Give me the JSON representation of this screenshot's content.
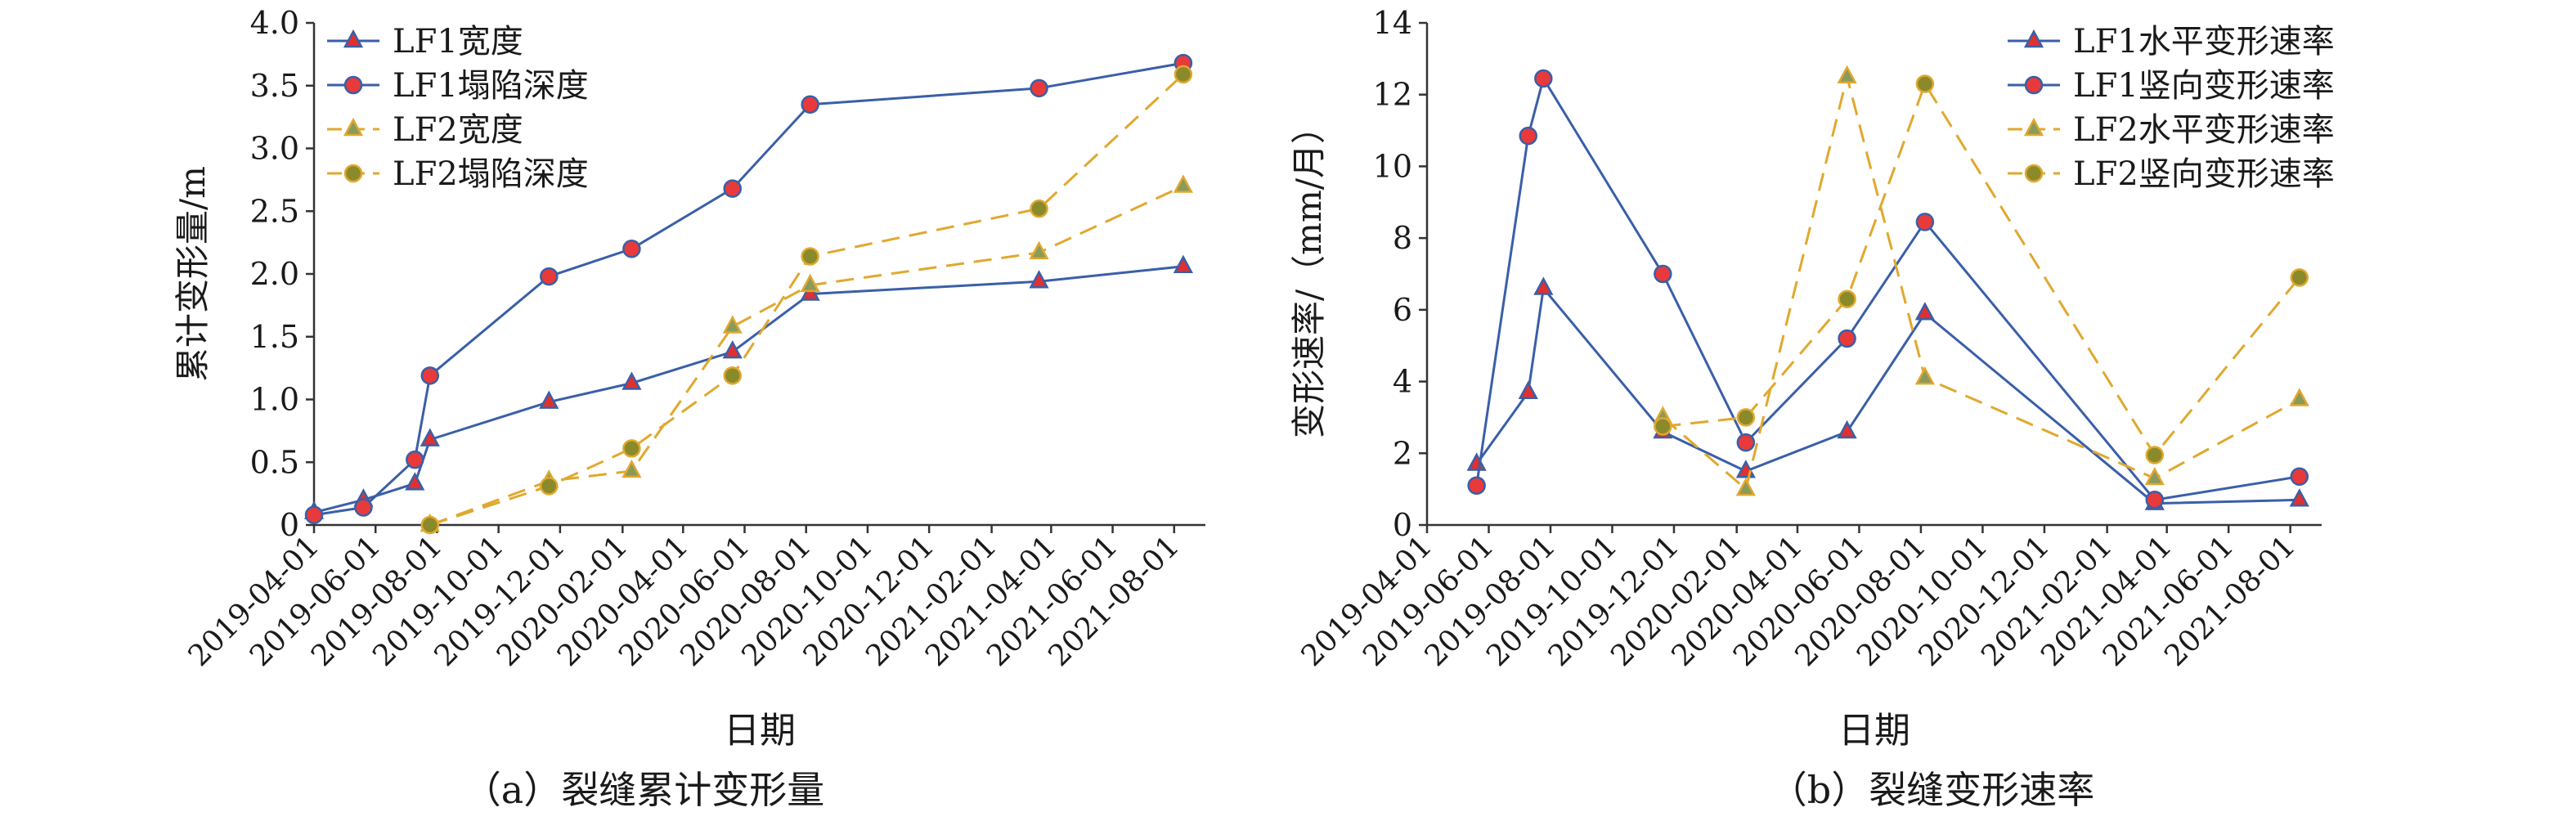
{
  "colors": {
    "lf1": "#3a5fa8",
    "lf2": "#e0a82e",
    "marker_lf1_width": "#e03030",
    "marker_lf1_depth": "#e83a3a",
    "marker_lf2_width": "#8a9a5b",
    "marker_lf2_depth": "#8a8a2a",
    "axis": "#333333"
  },
  "captions": {
    "a": "（a）裂缝累计变形量",
    "b": "（b）裂缝变形速率"
  },
  "chart_data": [
    {
      "type": "line",
      "xlabel": "日期",
      "ylabel": "累计变形量/m",
      "ylim": [
        0,
        4.0
      ],
      "yticks": [
        "0",
        "0.5",
        "1.0",
        "1.5",
        "2.0",
        "2.5",
        "3.0",
        "3.5",
        "4.0"
      ],
      "xlim": [
        "2019-04-01",
        "2021-09-01"
      ],
      "xticks": [
        "2019-04-01",
        "2019-06-01",
        "2019-08-01",
        "2019-10-01",
        "2019-12-01",
        "2020-02-01",
        "2020-04-01",
        "2020-06-01",
        "2020-08-01",
        "2020-10-01",
        "2020-12-01",
        "2021-02-01",
        "2021-04-01",
        "2021-06-01",
        "2021-08-01"
      ],
      "legend": "top-left",
      "series": [
        {
          "name": "LF1宽度",
          "style": "solid",
          "marker": "triangle",
          "x": [
            "2019-04-01",
            "2019-05-20",
            "2019-07-10",
            "2019-07-25",
            "2019-11-20",
            "2020-02-10",
            "2020-05-20",
            "2020-08-05",
            "2021-03-20",
            "2021-08-10"
          ],
          "values": [
            0.1,
            0.2,
            0.33,
            0.68,
            0.98,
            1.13,
            1.38,
            1.84,
            1.94,
            2.06
          ]
        },
        {
          "name": "LF1塌陷深度",
          "style": "solid",
          "marker": "circle",
          "x": [
            "2019-04-01",
            "2019-05-20",
            "2019-07-10",
            "2019-07-25",
            "2019-11-20",
            "2020-02-10",
            "2020-05-20",
            "2020-08-05",
            "2021-03-20",
            "2021-08-10"
          ],
          "values": [
            0.08,
            0.14,
            0.52,
            1.19,
            1.98,
            2.2,
            2.68,
            3.35,
            3.48,
            3.68
          ]
        },
        {
          "name": "LF2宽度",
          "style": "dashed",
          "marker": "triangle",
          "x": [
            "2019-07-25",
            "2019-11-20",
            "2020-02-10",
            "2020-05-20",
            "2020-08-05",
            "2021-03-20",
            "2021-08-10"
          ],
          "values": [
            0.0,
            0.35,
            0.43,
            1.58,
            1.91,
            2.17,
            2.7
          ]
        },
        {
          "name": "LF2塌陷深度",
          "style": "dashed",
          "marker": "circle",
          "x": [
            "2019-07-25",
            "2019-11-20",
            "2020-02-10",
            "2020-05-20",
            "2020-08-05",
            "2021-03-20",
            "2021-08-10"
          ],
          "values": [
            0.0,
            0.31,
            0.61,
            1.19,
            2.14,
            2.52,
            3.59
          ]
        }
      ]
    },
    {
      "type": "line",
      "xlabel": "日期",
      "ylabel": "变形速率/（mm/月）",
      "ylim": [
        0,
        14
      ],
      "yticks": [
        "0",
        "2",
        "4",
        "6",
        "8",
        "10",
        "12",
        "14"
      ],
      "xlim": [
        "2019-04-01",
        "2021-09-01"
      ],
      "xticks": [
        "2019-04-01",
        "2019-06-01",
        "2019-08-01",
        "2019-10-01",
        "2019-12-01",
        "2020-02-01",
        "2020-04-01",
        "2020-06-01",
        "2020-08-01",
        "2020-10-01",
        "2020-12-01",
        "2021-02-01",
        "2021-04-01",
        "2021-06-01",
        "2021-08-01"
      ],
      "legend": "top-right",
      "series": [
        {
          "name": "LF1水平变形速率",
          "style": "solid",
          "marker": "triangle",
          "x": [
            "2019-05-20",
            "2019-07-10",
            "2019-07-25",
            "2019-11-20",
            "2020-02-10",
            "2020-05-20",
            "2020-08-05",
            "2021-03-20",
            "2021-08-10"
          ],
          "values": [
            1.7,
            3.7,
            6.6,
            2.6,
            1.5,
            2.6,
            5.9,
            0.6,
            0.7
          ]
        },
        {
          "name": "LF1竖向变形速率",
          "style": "solid",
          "marker": "circle",
          "x": [
            "2019-05-20",
            "2019-07-10",
            "2019-07-25",
            "2019-11-20",
            "2020-02-10",
            "2020-05-20",
            "2020-08-05",
            "2021-03-20",
            "2021-08-10"
          ],
          "values": [
            1.1,
            10.85,
            12.45,
            7.0,
            2.3,
            5.2,
            8.45,
            0.7,
            1.35
          ]
        },
        {
          "name": "LF2水平变形速率",
          "style": "dashed",
          "marker": "triangle",
          "x": [
            "2019-11-20",
            "2020-02-10",
            "2020-05-20",
            "2020-08-05",
            "2021-03-20",
            "2021-08-10"
          ],
          "values": [
            3.0,
            1.0,
            12.5,
            4.1,
            1.3,
            3.5
          ]
        },
        {
          "name": "LF2竖向变形速率",
          "style": "dashed",
          "marker": "circle",
          "x": [
            "2019-11-20",
            "2020-02-10",
            "2020-05-20",
            "2020-08-05",
            "2021-03-20",
            "2021-08-10"
          ],
          "values": [
            2.75,
            3.0,
            6.3,
            12.3,
            1.95,
            6.9
          ]
        }
      ]
    }
  ]
}
